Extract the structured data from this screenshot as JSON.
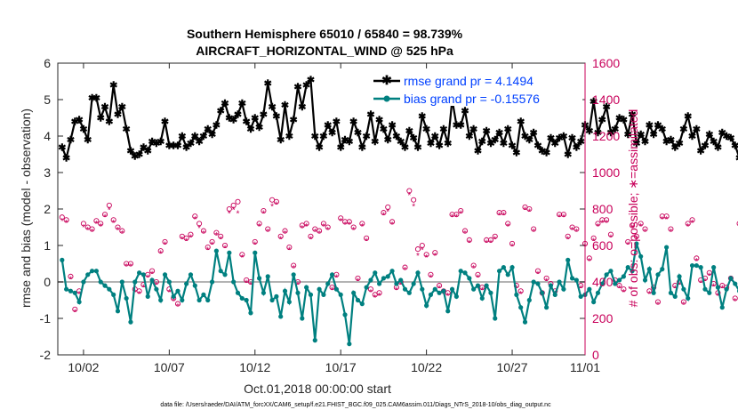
{
  "chart_data": {
    "type": "line",
    "title": "Southern Hemisphere 65010 / 65840 = 98.739%",
    "subtitle": "AIRCRAFT_HORIZONTAL_WIND @ 525 hPa",
    "xlabel": "Oct.01,2018 00:00:00 start",
    "ylabel": "rmse and bias (model - observation)",
    "ylabel_right": "# of obs: o=possible; ∗=assimilated",
    "footnote": "data file: /Users/raeder/DAI/ATM_forcXX/CAM6_setup/f.e21.FHIST_BGC.f09_025.CAM6assim.011/Diags_NTrS_2018-10/obs_diag_output.nc",
    "xlim": [
      0.5,
      31.25
    ],
    "ylim": [
      -2,
      6
    ],
    "ylim_right": [
      0,
      1600
    ],
    "x_tick_values": [
      2,
      7,
      12,
      17,
      22,
      27,
      32
    ],
    "x_tick_labels": [
      "10/02",
      "10/07",
      "10/12",
      "10/17",
      "10/22",
      "10/27",
      "11/01"
    ],
    "y_ticks": [
      -2,
      -1,
      0,
      1,
      2,
      3,
      4,
      5,
      6
    ],
    "y_ticks_right": [
      0,
      200,
      400,
      600,
      800,
      1000,
      1200,
      1400,
      1600
    ],
    "legend": {
      "position": "top-right",
      "entries": [
        "rmse grand pr = 4.1494",
        "bias grand pr = -0.15576"
      ]
    },
    "colors": {
      "rmse": "#000000",
      "bias": "#008080",
      "obs": "#c8005a",
      "zero_line": "#b3b3b3"
    },
    "x_start": 0.75,
    "x_step": 0.25,
    "series": [
      {
        "name": "rmse",
        "values": [
          3.7,
          3.4,
          3.9,
          4.4,
          4.45,
          4.2,
          3.9,
          5.05,
          5.05,
          4.5,
          4.8,
          4.4,
          5.4,
          4.6,
          4.8,
          4.2,
          3.6,
          3.45,
          3.5,
          3.7,
          3.6,
          3.85,
          3.8,
          3.85,
          4.4,
          3.75,
          3.75,
          3.75,
          4.0,
          3.7,
          3.8,
          4.0,
          3.85,
          4.0,
          4.2,
          4.05,
          4.3,
          4.7,
          4.9,
          4.5,
          4.45,
          4.6,
          4.9,
          4.4,
          4.2,
          4.5,
          4.25,
          4.6,
          5.45,
          4.8,
          4.55,
          3.9,
          4.85,
          4.0,
          4.45,
          5.35,
          4.8,
          5.4,
          5.55,
          4.0,
          3.7,
          4.0,
          4.3,
          4.1,
          4.4,
          3.7,
          3.9,
          3.85,
          4.4,
          4.1,
          3.7,
          4.0,
          4.6,
          3.85,
          4.45,
          4.2,
          3.9,
          4.3,
          4.0,
          3.85,
          3.7,
          4.15,
          3.95,
          3.7,
          4.55,
          4.2,
          3.8,
          4.0,
          3.75,
          4.2,
          3.8,
          5.0,
          4.3,
          4.3,
          4.7,
          4.0,
          4.2,
          3.6,
          3.85,
          4.15,
          3.8,
          3.9,
          4.1,
          3.8,
          4.2,
          3.75,
          3.55,
          4.4,
          4.0,
          3.9,
          4.1,
          3.75,
          3.6,
          3.55,
          3.95,
          3.8,
          3.95,
          4.0,
          3.5,
          3.95,
          3.7,
          3.85,
          4.3,
          4.15,
          4.95,
          4.1,
          4.45,
          4.8,
          4.1,
          4.2,
          4.5,
          4.45,
          4.05,
          4.6,
          3.8,
          4.05,
          3.85,
          4.3,
          4.05,
          4.3,
          4.2,
          3.85,
          3.9,
          3.7,
          3.8,
          4.2,
          4.55,
          4.0,
          4.2,
          3.6,
          3.75,
          4.05,
          3.85,
          3.7,
          4.1,
          4.0,
          3.95,
          3.75,
          3.4,
          4.3,
          4.6,
          3.85,
          4.3,
          4.4,
          5.4
        ]
      },
      {
        "name": "bias",
        "values": [
          0.6,
          -0.2,
          -0.25,
          -0.3,
          -0.55,
          0.0,
          0.2,
          0.3,
          0.3,
          0.0,
          -0.1,
          -0.2,
          -0.35,
          -0.8,
          0.0,
          -0.45,
          -1.1,
          0.0,
          0.25,
          0.2,
          -0.4,
          0.05,
          -0.2,
          -0.5,
          0.2,
          0.0,
          -0.4,
          -0.25,
          -0.5,
          -0.05,
          0.2,
          -0.1,
          -0.5,
          -0.35,
          -0.5,
          0.0,
          0.85,
          0.3,
          0.2,
          0.8,
          0.0,
          -0.3,
          -0.45,
          -0.5,
          -0.85,
          0.8,
          0.1,
          -0.3,
          0.15,
          -0.5,
          -0.4,
          -0.95,
          -0.25,
          -0.55,
          0.2,
          -0.3,
          -1.0,
          -0.15,
          -0.35,
          -1.6,
          -0.2,
          -0.35,
          -0.05,
          0.2,
          -0.2,
          -0.35,
          -0.9,
          -1.7,
          -0.3,
          -0.5,
          -0.6,
          -0.15,
          0.05,
          0.25,
          -0.05,
          0.1,
          0.15,
          0.3,
          -0.05,
          0.05,
          -0.2,
          -0.3,
          -0.05,
          0.25,
          -0.2,
          -0.65,
          -0.35,
          -0.2,
          -0.3,
          -0.25,
          -0.8,
          -0.2,
          -0.4,
          0.3,
          0.25,
          0.1,
          -0.2,
          -0.1,
          -0.45,
          -0.1,
          -0.3,
          -1.0,
          0.3,
          0.4,
          0.2,
          0.4,
          -0.35,
          -0.7,
          -1.1,
          -0.5,
          0.0,
          -0.05,
          -0.3,
          -0.7,
          -0.1,
          -0.35,
          0.0,
          -0.2,
          0.6,
          0.1,
          0.05,
          -0.4,
          -0.35,
          -0.2,
          -0.55,
          -0.3,
          -0.05,
          0.2,
          0.3,
          -0.05,
          0.05,
          0.15,
          0.4,
          0.3,
          1.05,
          0.7,
          0.05,
          0.35,
          -0.3,
          0.2,
          0.35,
          0.95,
          -0.3,
          -0.4,
          0.15,
          -0.2,
          -0.45,
          0.45,
          0.45,
          0.4,
          -0.2,
          -0.3,
          0.4,
          -0.15,
          -0.7,
          -0.2,
          0.1,
          -0.05,
          -0.25,
          0.1,
          -1.0,
          -0.2,
          -0.1,
          -0.2,
          -0.4,
          0.2,
          -0.5
        ]
      },
      {
        "name": "obs_possible",
        "values": [
          755,
          740,
          430,
          250,
          350,
          720,
          700,
          690,
          735,
          720,
          770,
          820,
          740,
          700,
          680,
          500,
          500,
          360,
          350,
          385,
          440,
          460,
          400,
          570,
          620,
          360,
          310,
          280,
          650,
          640,
          660,
          760,
          720,
          680,
          590,
          620,
          670,
          650,
          600,
          800,
          820,
          840,
          550,
          410,
          400,
          620,
          720,
          790,
          690,
          850,
          840,
          650,
          680,
          590,
          490,
          400,
          710,
          720,
          650,
          690,
          680,
          720,
          700,
          370,
          440,
          750,
          730,
          730,
          700,
          420,
          720,
          640,
          360,
          330,
          340,
          780,
          810,
          730,
          370,
          400,
          480,
          900,
          850,
          580,
          600,
          550,
          440,
          560,
          380,
          350,
          340,
          770,
          770,
          790,
          680,
          630,
          490,
          440,
          370,
          630,
          630,
          650,
          780,
          780,
          720,
          610,
          380,
          350,
          810,
          800,
          690,
          460,
          340,
          420,
          390,
          350,
          770,
          770,
          650,
          700,
          690,
          380,
          610,
          530,
          640,
          720,
          740,
          740,
          660,
          410,
          380,
          360,
          620,
          710,
          650,
          720,
          690,
          350,
          370,
          290,
          760,
          760,
          690,
          380,
          400,
          290,
          720,
          740,
          530,
          410,
          420,
          450,
          390,
          340,
          380,
          370,
          420,
          310,
          720,
          720,
          660,
          740,
          560,
          380,
          390
        ]
      },
      {
        "name": "obs_assimilated",
        "values": [
          740,
          730,
          420,
          240,
          340,
          705,
          690,
          680,
          725,
          710,
          760,
          800,
          730,
          690,
          670,
          490,
          490,
          350,
          340,
          375,
          430,
          450,
          390,
          560,
          610,
          350,
          300,
          270,
          640,
          630,
          650,
          750,
          700,
          670,
          580,
          610,
          660,
          640,
          590,
          780,
          800,
          780,
          540,
          400,
          390,
          610,
          710,
          780,
          680,
          820,
          830,
          640,
          670,
          580,
          480,
          390,
          700,
          710,
          640,
          680,
          670,
          710,
          690,
          360,
          430,
          740,
          720,
          720,
          690,
          410,
          710,
          630,
          350,
          320,
          330,
          770,
          790,
          720,
          360,
          390,
          470,
          880,
          820,
          550,
          580,
          540,
          430,
          550,
          370,
          340,
          330,
          760,
          760,
          780,
          670,
          620,
          480,
          430,
          360,
          620,
          620,
          640,
          770,
          770,
          710,
          600,
          370,
          340,
          800,
          790,
          680,
          450,
          330,
          410,
          380,
          340,
          760,
          760,
          640,
          690,
          680,
          370,
          600,
          520,
          630,
          710,
          730,
          730,
          650,
          400,
          370,
          350,
          610,
          700,
          640,
          710,
          680,
          340,
          360,
          280,
          750,
          750,
          680,
          370,
          390,
          280,
          710,
          730,
          520,
          400,
          410,
          440,
          380,
          330,
          370,
          360,
          410,
          300,
          710,
          710,
          650,
          730,
          550,
          370,
          380
        ]
      }
    ]
  }
}
